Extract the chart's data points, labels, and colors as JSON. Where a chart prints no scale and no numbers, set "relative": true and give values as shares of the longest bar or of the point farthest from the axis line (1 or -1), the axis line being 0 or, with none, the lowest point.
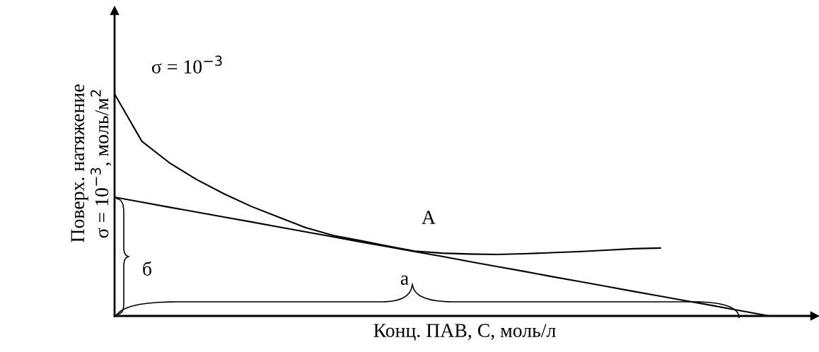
{
  "chart_data": {
    "type": "line",
    "relative": true,
    "xlabel": "Конц. ПАВ, С, моль/л",
    "ylabel": "Поверх. натяжение\nσ = 10$^{−3}$, моль/м$^{2}$",
    "categories": [
      null,
      null,
      null,
      null,
      null,
      null,
      null,
      null,
      null,
      null,
      null,
      null,
      null,
      null,
      null,
      null,
      null,
      null,
      null,
      null,
      null,
      null,
      null,
      null,
      null
    ],
    "series": [
      {
        "color": "#000000",
        "values": [
          1.0,
          0.787,
          0.691,
          0.615,
          0.551,
          0.494,
          0.446,
          0.398,
          0.363,
          0.34,
          0.315,
          0.292,
          0.283,
          0.279,
          0.277,
          0.28,
          0.285,
          0.29,
          0.296,
          0.303,
          0.306,
          null,
          null,
          null,
          null
        ]
      },
      {
        "color": "#000000",
        "values": [
          0.535,
          0.513,
          0.49,
          0.468,
          0.446,
          0.424,
          0.401,
          0.379,
          0.357,
          0.334,
          0.312,
          0.29,
          0.268,
          0.245,
          0.223,
          0.201,
          0.178,
          0.156,
          0.134,
          0.111,
          0.089,
          0.067,
          0.045,
          0.022,
          0
        ]
      }
    ],
    "annotations": [
      "σ = 10$^{−3}$",
      "A",
      "б",
      "а"
    ]
  }
}
